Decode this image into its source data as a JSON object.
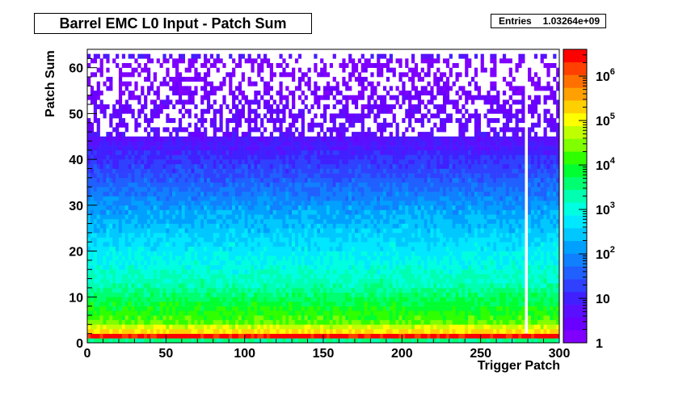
{
  "chart_data": {
    "type": "heatmap",
    "title": "Barrel EMC L0 Input - Patch Sum",
    "xlabel": "Trigger Patch",
    "ylabel": "Patch Sum",
    "xlim": [
      0,
      300
    ],
    "ylim": [
      0,
      64
    ],
    "x_ticks": [
      0,
      50,
      100,
      150,
      200,
      250,
      300
    ],
    "y_ticks": [
      0,
      10,
      20,
      30,
      40,
      50,
      60
    ],
    "z_scale": "log",
    "z_range": [
      1,
      4000000
    ],
    "z_ticks": [
      {
        "value": 1,
        "label": "1"
      },
      {
        "value": 10,
        "label": "10"
      },
      {
        "value": 100,
        "label": "10",
        "exp": "2"
      },
      {
        "value": 1000,
        "label": "10",
        "exp": "3"
      },
      {
        "value": 10000,
        "label": "10",
        "exp": "4"
      },
      {
        "value": 100000,
        "label": "10",
        "exp": "5"
      },
      {
        "value": 1000000,
        "label": "10",
        "exp": "6"
      }
    ],
    "stats": {
      "label": "Entries",
      "value": "1.03264e+09"
    },
    "palette": [
      "#7f00ff",
      "#6a00ff",
      "#5a10ff",
      "#4020ff",
      "#3040ff",
      "#2060ff",
      "#1080ff",
      "#00a0ff",
      "#00c8ff",
      "#00e8ff",
      "#00ffe0",
      "#00ffb0",
      "#00ff70",
      "#00ff30",
      "#30ff00",
      "#80ff00",
      "#c0ff00",
      "#ffff00",
      "#ffd000",
      "#ffa000",
      "#ff7000",
      "#ff4000",
      "#ff0000"
    ]
  }
}
